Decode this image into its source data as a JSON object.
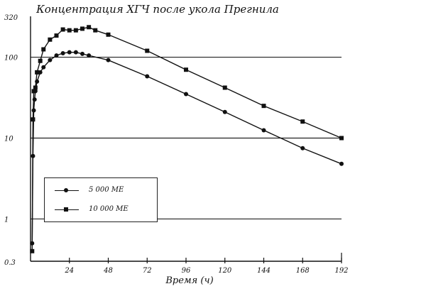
{
  "chart_data": {
    "type": "line",
    "title": "Концентрация ХГЧ после укола Прегнила",
    "xlabel": "Время (ч)",
    "ylabel": "",
    "y_scale": "log",
    "xlim": [
      0,
      192
    ],
    "ylim": [
      0.3,
      320
    ],
    "x_ticks": [
      24,
      48,
      72,
      96,
      120,
      144,
      168,
      192
    ],
    "x_tick_labels": [
      "24",
      "48",
      "72",
      "96",
      "120",
      "144",
      "168",
      "192"
    ],
    "y_ticks": [
      0.3,
      1,
      10,
      100,
      320
    ],
    "y_tick_labels": [
      "0.3",
      "1",
      "10",
      "100",
      "320"
    ],
    "grid": "horizontal",
    "legend_position": "lower-left",
    "series": [
      {
        "name": "5 000 МЕ",
        "marker": "circle",
        "x": [
          1,
          1.5,
          2,
          2.5,
          3,
          4,
          6,
          8,
          12,
          16,
          20,
          24,
          28,
          32,
          36,
          48,
          72,
          96,
          120,
          144,
          168,
          192
        ],
        "y": [
          0.5,
          6,
          22,
          30,
          38,
          50,
          65,
          75,
          92,
          105,
          112,
          115,
          115,
          110,
          105,
          92,
          58,
          35,
          21,
          12.5,
          7.5,
          4.8
        ]
      },
      {
        "name": "10 000 МЕ",
        "marker": "square",
        "x": [
          1,
          1.5,
          2,
          3,
          4,
          6,
          8,
          12,
          16,
          20,
          24,
          28,
          32,
          36,
          40,
          48,
          72,
          96,
          120,
          144,
          168,
          192
        ],
        "y": [
          0.4,
          17,
          38,
          42,
          65,
          90,
          125,
          165,
          185,
          220,
          215,
          215,
          225,
          235,
          215,
          190,
          120,
          70,
          42,
          25,
          16,
          10
        ]
      }
    ]
  }
}
